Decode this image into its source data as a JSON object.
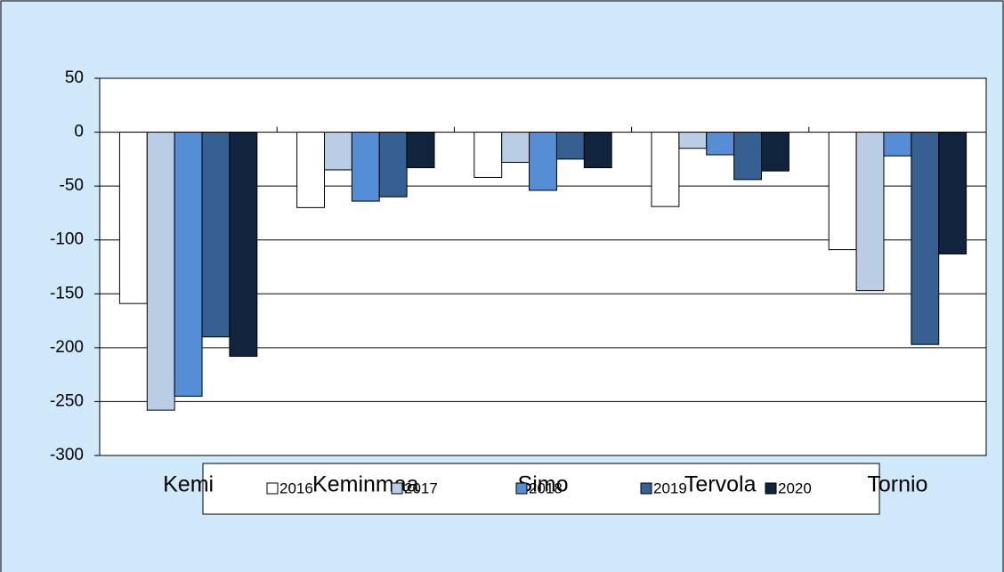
{
  "chart_data": {
    "type": "bar",
    "categories": [
      "Kemi",
      "Keminmaa",
      "Simo",
      "Tervola",
      "Tornio"
    ],
    "series": [
      {
        "name": "2016",
        "color": "#ffffff",
        "values": [
          -159,
          -70,
          -42,
          -69,
          -109
        ]
      },
      {
        "name": "2017",
        "color": "#b9cde5",
        "values": [
          -258,
          -35,
          -28,
          -15,
          -147
        ]
      },
      {
        "name": "2018",
        "color": "#558ed5",
        "values": [
          -245,
          -64,
          -54,
          -21,
          -22
        ]
      },
      {
        "name": "2019",
        "color": "#376092",
        "values": [
          -190,
          -60,
          -25,
          -44,
          -197
        ]
      },
      {
        "name": "2020",
        "color": "#10243e",
        "values": [
          -208,
          -33,
          -33,
          -36,
          -113
        ]
      }
    ],
    "ylim": [
      -300,
      50
    ],
    "yticks": [
      -300,
      -250,
      -200,
      -150,
      -100,
      -50,
      0,
      50
    ],
    "grid": true
  }
}
